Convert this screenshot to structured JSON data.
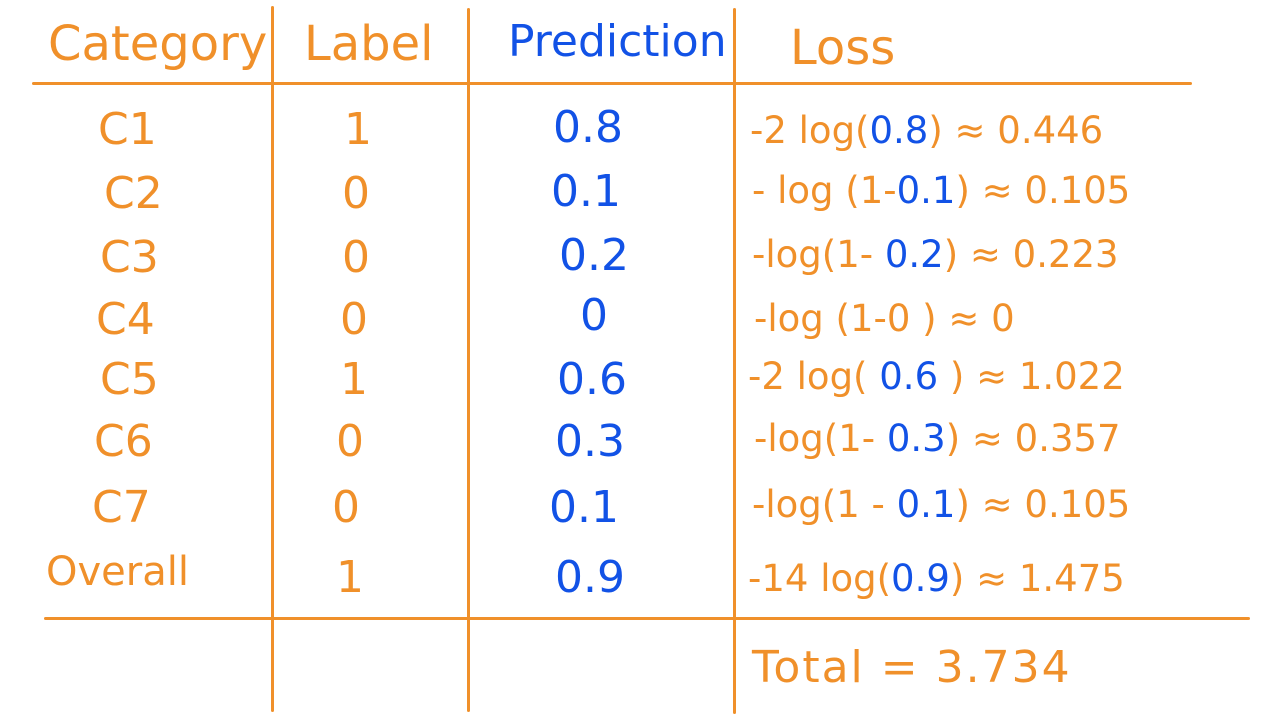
{
  "headers": {
    "category": "Category",
    "label": "Label",
    "prediction": "Prediction",
    "loss": "Loss"
  },
  "rows": [
    {
      "category": "C1",
      "label": "1",
      "prediction": "0.8",
      "loss_pre": "-2 log(",
      "loss_arg": "0.8",
      "loss_post": ") ≈ 0.446"
    },
    {
      "category": "C2",
      "label": "0",
      "prediction": "0.1",
      "loss_pre": "- log (1-",
      "loss_arg": "0.1",
      "loss_post": ") ≈ 0.105"
    },
    {
      "category": "C3",
      "label": "0",
      "prediction": "0.2",
      "loss_pre": "-log(1- ",
      "loss_arg": "0.2",
      "loss_post": ") ≈ 0.223"
    },
    {
      "category": "C4",
      "label": "0",
      "prediction": "0",
      "loss_pre": "-log (1-0 ",
      "loss_arg": "",
      "loss_post": ") ≈ 0"
    },
    {
      "category": "C5",
      "label": "1",
      "prediction": "0.6",
      "loss_pre": "-2 log( ",
      "loss_arg": "0.6",
      "loss_post": " ) ≈ 1.022"
    },
    {
      "category": "C6",
      "label": "0",
      "prediction": "0.3",
      "loss_pre": "-log(1- ",
      "loss_arg": "0.3",
      "loss_post": ") ≈ 0.357"
    },
    {
      "category": "C7",
      "label": "0",
      "prediction": "0.1",
      "loss_pre": "-log(1 - ",
      "loss_arg": "0.1",
      "loss_post": ") ≈ 0.105"
    },
    {
      "category": "Overall",
      "label": "1",
      "prediction": "0.9",
      "loss_pre": "-14 log(",
      "loss_arg": "0.9",
      "loss_post": ") ≈ 1.475"
    }
  ],
  "total": "Total = 3.734",
  "colors": {
    "ink_orange": "#f0902a",
    "ink_blue": "#1252e6",
    "background": "#ffffff"
  }
}
